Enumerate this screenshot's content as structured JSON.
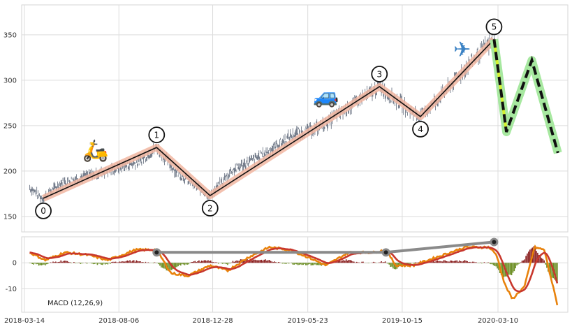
{
  "chart_data": [
    {
      "type": "line",
      "panel": "price",
      "title": "",
      "xlabel": "",
      "ylabel": "",
      "ylim": [
        133,
        383
      ],
      "y_ticks": [
        150,
        200,
        250,
        300,
        350
      ],
      "grid": true,
      "date_range": [
        "2018-03-22",
        "2020-07-10"
      ],
      "price_path": [
        [
          "2018-03-22",
          182
        ],
        [
          "2018-04-10",
          170
        ],
        [
          "2018-05-10",
          187
        ],
        [
          "2018-06-15",
          194
        ],
        [
          "2018-07-25",
          201
        ],
        [
          "2018-09-05",
          210
        ],
        [
          "2018-10-03",
          226
        ],
        [
          "2018-11-01",
          200
        ],
        [
          "2018-12-24",
          172
        ],
        [
          "2019-01-25",
          200
        ],
        [
          "2019-03-15",
          218
        ],
        [
          "2019-05-01",
          240
        ],
        [
          "2019-06-10",
          248
        ],
        [
          "2019-07-25",
          270
        ],
        [
          "2019-09-10",
          293
        ],
        [
          "2019-10-20",
          270
        ],
        [
          "2019-11-12",
          260
        ],
        [
          "2019-12-20",
          288
        ],
        [
          "2020-02-10",
          330
        ],
        [
          "2020-03-04",
          343
        ],
        [
          "2020-03-23",
          245
        ]
      ],
      "wave_points": [
        {
          "label": "0",
          "x": "2018-04-12",
          "y": 170
        },
        {
          "label": "1",
          "x": "2018-10-03",
          "y": 226
        },
        {
          "label": "2",
          "x": "2018-12-24",
          "y": 173
        },
        {
          "label": "3",
          "x": "2019-09-10",
          "y": 293
        },
        {
          "label": "4",
          "x": "2019-11-12",
          "y": 260
        },
        {
          "label": "5",
          "x": "2020-03-04",
          "y": 345
        }
      ],
      "projection": [
        {
          "x": "2020-03-04",
          "y": 345
        },
        {
          "x": "2020-03-23",
          "y": 243
        },
        {
          "x": "2020-05-01",
          "y": 322
        },
        {
          "x": "2020-06-10",
          "y": 220
        }
      ],
      "icons": [
        {
          "name": "scooter-icon",
          "glyph": "🛵",
          "x": "2018-07-01",
          "y": 215
        },
        {
          "name": "car-icon",
          "glyph": "🚙",
          "x": "2019-06-20",
          "y": 275
        },
        {
          "name": "airplane-icon",
          "glyph": "✈",
          "x": "2020-01-15",
          "y": 326
        }
      ],
      "colors": {
        "price": "#4a5568",
        "wave_band": "#f1b6a1",
        "wave_line": "#111111",
        "projection_band": "#a7e8a0",
        "projection_line": "#111111",
        "accent_lime": "#d4f230"
      }
    },
    {
      "type": "line",
      "panel": "macd",
      "ylim": [
        -19,
        10
      ],
      "y_ticks": [
        -10,
        0
      ],
      "grid": true,
      "indicator_label": "MACD (12,26,9)",
      "x_tick_labels": [
        "2018-03-14",
        "2018-08-06",
        "2018-12-28",
        "2019-05-23",
        "2019-10-15",
        "2020-03-10"
      ],
      "x_tick_dates": [
        "2018-03-14",
        "2018-08-06",
        "2018-12-28",
        "2019-05-23",
        "2019-10-15",
        "2020-03-10"
      ],
      "macd_path": [
        [
          "2018-03-22",
          4
        ],
        [
          "2018-04-15",
          1
        ],
        [
          "2018-05-15",
          4
        ],
        [
          "2018-06-20",
          3
        ],
        [
          "2018-07-20",
          1
        ],
        [
          "2018-09-01",
          5
        ],
        [
          "2018-10-03",
          5
        ],
        [
          "2018-10-25",
          -4
        ],
        [
          "2018-11-20",
          -5
        ],
        [
          "2018-12-24",
          -1
        ],
        [
          "2019-01-20",
          -3
        ],
        [
          "2019-02-20",
          2
        ],
        [
          "2019-03-25",
          6
        ],
        [
          "2019-04-25",
          5
        ],
        [
          "2019-05-25",
          2
        ],
        [
          "2019-06-20",
          -1
        ],
        [
          "2019-07-25",
          4
        ],
        [
          "2019-09-01",
          4
        ],
        [
          "2019-09-20",
          5
        ],
        [
          "2019-10-05",
          -1
        ],
        [
          "2019-11-01",
          -1
        ],
        [
          "2019-12-05",
          2
        ],
        [
          "2020-01-20",
          6
        ],
        [
          "2020-02-25",
          6
        ],
        [
          "2020-03-08",
          3
        ],
        [
          "2020-03-20",
          -8
        ],
        [
          "2020-04-01",
          -14
        ],
        [
          "2020-04-20",
          -9
        ],
        [
          "2020-05-05",
          6
        ],
        [
          "2020-05-20",
          5
        ],
        [
          "2020-06-10",
          -17
        ]
      ],
      "divergence_line": [
        {
          "x": "2018-10-03",
          "y": 4
        },
        {
          "x": "2019-09-20",
          "y": 4
        },
        {
          "x": "2020-03-04",
          "y": 8
        }
      ],
      "colors": {
        "macd": "#e8820c",
        "signal": "#c8372d",
        "hist_pos": "#8b2020",
        "hist_neg": "#6b8e23",
        "divergence": "#8a8a8a"
      }
    }
  ]
}
